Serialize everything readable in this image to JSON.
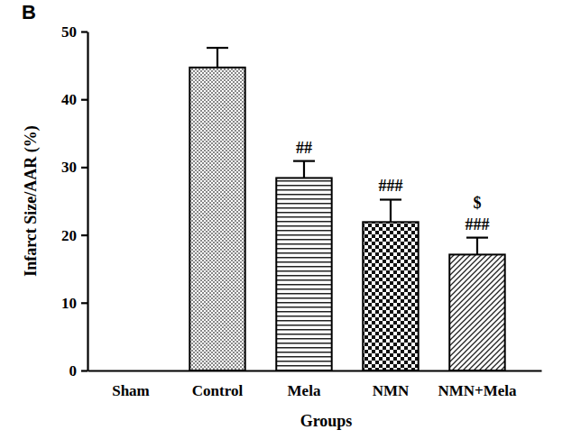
{
  "chart_data": {
    "type": "bar",
    "title": "B",
    "x_label": "Groups",
    "y_label": "Infarct Size/AAR (%)",
    "categories": [
      "Sham",
      "Control",
      "Mela",
      "NMN",
      "NMN+Mela"
    ],
    "values": [
      0,
      44.7,
      28.4,
      21.9,
      17.1
    ],
    "errors": [
      null,
      2.9,
      2.5,
      3.3,
      2.5
    ],
    "ylim": [
      0,
      50
    ],
    "yticks": [
      0,
      10,
      20,
      30,
      40,
      50
    ],
    "annotations": [
      {
        "category": "Mela",
        "text": "##"
      },
      {
        "category": "NMN",
        "text": "###"
      },
      {
        "category": "NMN+Mela",
        "text": "###"
      },
      {
        "category": "NMN+Mela",
        "text": "$"
      }
    ]
  }
}
